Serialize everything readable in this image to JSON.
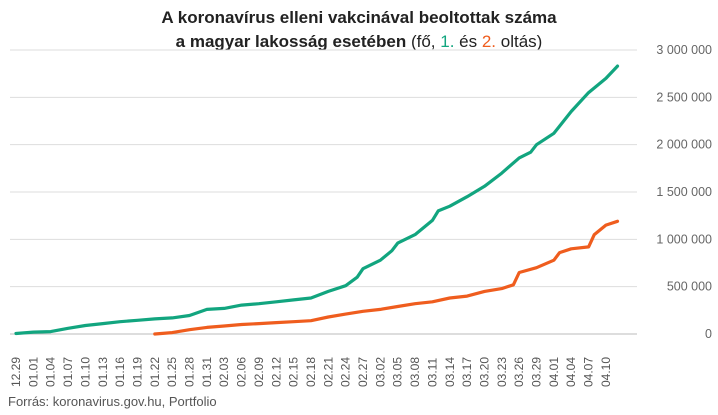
{
  "title": {
    "line1": "A koronavírus elleni vakcinával beoltottak száma",
    "line2_bold": "a magyar lakosság esetében",
    "line2_open": " (fő, ",
    "series1_key": "1.",
    "and": " és ",
    "series2_key": "2.",
    "line2_close": " oltás)"
  },
  "source": "Forrás: koronavirus.gov.hu, Portfolio",
  "colors": {
    "first_dose": "#12a57f",
    "second_dose": "#ef5d1e",
    "grid": "#dddddd"
  },
  "chart_data": {
    "type": "line",
    "title": "A koronavírus elleni vakcinával beoltottak száma a magyar lakosság esetében (fő, 1. és 2. oltás)",
    "xlabel": "",
    "ylabel": "",
    "ylim": [
      0,
      3000000
    ],
    "y_ticks": [
      0,
      500000,
      1000000,
      1500000,
      2000000,
      2500000,
      3000000
    ],
    "y_tick_labels": [
      "0",
      "500 000",
      "1 000 000",
      "1 500 000",
      "2 000 000",
      "2 500 000",
      "3 000 000"
    ],
    "grid": true,
    "x_tick_labels": [
      "12.29",
      "01.01",
      "01.04",
      "01.07",
      "01.10",
      "01.13",
      "01.16",
      "01.19",
      "01.22",
      "01.25",
      "01.28",
      "01.31",
      "02.03",
      "02.06",
      "02.09",
      "02.12",
      "02.15",
      "02.18",
      "02.21",
      "02.24",
      "02.27",
      "03.02",
      "03.05",
      "03.08",
      "03.11",
      "03.14",
      "03.17",
      "03.20",
      "03.23",
      "03.26",
      "03.29",
      "04.01",
      "04.04",
      "04.07",
      "04.10"
    ],
    "x_axis": {
      "start": "12.29",
      "end": "04.12",
      "step_days": 3
    },
    "series": [
      {
        "key": "1.",
        "color": "#12a57f",
        "x": [
          "12.29",
          "01.01",
          "01.04",
          "01.07",
          "01.10",
          "01.13",
          "01.16",
          "01.19",
          "01.22",
          "01.25",
          "01.28",
          "01.31",
          "02.03",
          "02.06",
          "02.09",
          "02.12",
          "02.15",
          "02.18",
          "02.21",
          "02.24",
          "02.26",
          "02.27",
          "03.02",
          "03.04",
          "03.05",
          "03.08",
          "03.11",
          "03.12",
          "03.14",
          "03.17",
          "03.20",
          "03.23",
          "03.26",
          "03.28",
          "03.29",
          "04.01",
          "04.04",
          "04.07",
          "04.10",
          "04.12"
        ],
        "values": [
          5000,
          20000,
          25000,
          60000,
          90000,
          110000,
          130000,
          145000,
          160000,
          170000,
          195000,
          260000,
          270000,
          305000,
          320000,
          340000,
          360000,
          380000,
          450000,
          510000,
          600000,
          690000,
          780000,
          880000,
          960000,
          1050000,
          1200000,
          1300000,
          1350000,
          1450000,
          1560000,
          1700000,
          1860000,
          1920000,
          2000000,
          2120000,
          2350000,
          2550000,
          2700000,
          2830000
        ]
      },
      {
        "key": "2.",
        "color": "#ef5d1e",
        "x": [
          "01.22",
          "01.25",
          "01.28",
          "01.31",
          "02.03",
          "02.06",
          "02.09",
          "02.12",
          "02.15",
          "02.18",
          "02.21",
          "02.24",
          "02.27",
          "03.02",
          "03.05",
          "03.08",
          "03.11",
          "03.14",
          "03.17",
          "03.20",
          "03.23",
          "03.25",
          "03.26",
          "03.29",
          "04.01",
          "04.02",
          "04.04",
          "04.07",
          "04.08",
          "04.10",
          "04.12"
        ],
        "values": [
          0,
          15000,
          45000,
          70000,
          85000,
          100000,
          110000,
          120000,
          130000,
          140000,
          180000,
          210000,
          240000,
          260000,
          290000,
          320000,
          340000,
          380000,
          400000,
          450000,
          480000,
          520000,
          650000,
          700000,
          780000,
          860000,
          900000,
          920000,
          1050000,
          1150000,
          1190000
        ]
      }
    ]
  }
}
